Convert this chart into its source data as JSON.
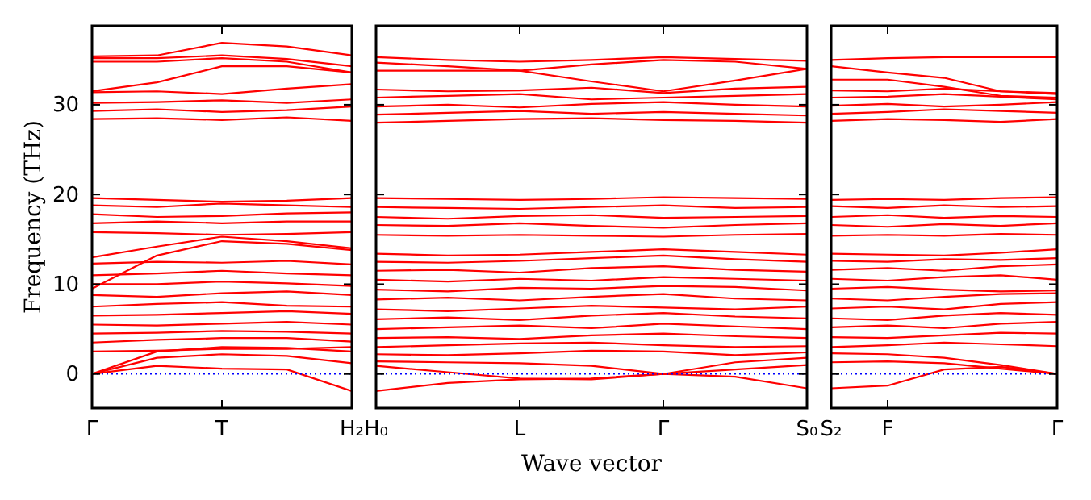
{
  "chart_data": [
    {
      "type": "line",
      "ylabel": "Frequency (THz)",
      "categories": [
        "Γ",
        null,
        "T",
        null,
        "H₂"
      ],
      "ylim": [
        -3.8,
        38.8
      ],
      "yticks": [
        0,
        10,
        20,
        30
      ],
      "ref_lines": [
        {
          "axis": "y",
          "value": 0,
          "color": "#0000ff",
          "line_style": "dotted"
        }
      ],
      "series": [
        {
          "color": "#ff0000",
          "values": [
            0,
            0.9,
            0.6,
            0.5,
            -1.9
          ]
        },
        {
          "color": "#ff0000",
          "values": [
            0,
            1.8,
            2.2,
            2.0,
            1.2
          ]
        },
        {
          "color": "#ff0000",
          "values": [
            0,
            2.5,
            3.0,
            2.9,
            2.5
          ]
        },
        {
          "color": "#ff0000",
          "values": [
            2.5,
            2.6,
            2.8,
            2.8,
            3.0
          ]
        },
        {
          "color": "#ff0000",
          "values": [
            3.5,
            3.8,
            4,
            4,
            3.6
          ]
        },
        {
          "color": "#ff0000",
          "values": [
            4.5,
            4.6,
            4.8,
            4.7,
            4.5
          ]
        },
        {
          "color": "#ff0000",
          "values": [
            5.5,
            5.4,
            5.6,
            5.8,
            5.5
          ]
        },
        {
          "color": "#ff0000",
          "values": [
            6.5,
            6.6,
            6.8,
            7,
            6.7
          ]
        },
        {
          "color": "#ff0000",
          "values": [
            7.5,
            7.8,
            8,
            7.6,
            7.5
          ]
        },
        {
          "color": "#ff0000",
          "values": [
            8.8,
            8.6,
            9,
            9.2,
            8.8
          ]
        },
        {
          "color": "#ff0000",
          "values": [
            10,
            10,
            10.3,
            10.1,
            9.8
          ]
        },
        {
          "color": "#ff0000",
          "values": [
            11,
            11.2,
            11.5,
            11.2,
            11
          ]
        },
        {
          "color": "#ff0000",
          "values": [
            12.3,
            12.5,
            12.4,
            12.6,
            12.2
          ]
        },
        {
          "color": "#ff0000",
          "values": [
            9.5,
            13.2,
            14.8,
            14.5,
            13.8
          ]
        },
        {
          "color": "#ff0000",
          "values": [
            13,
            14.2,
            15.3,
            14.8,
            14
          ]
        },
        {
          "color": "#ff0000",
          "values": [
            15.8,
            15.7,
            15.5,
            15.6,
            15.8
          ]
        },
        {
          "color": "#ff0000",
          "values": [
            16.8,
            17,
            16.8,
            17,
            17
          ]
        },
        {
          "color": "#ff0000",
          "values": [
            17.8,
            17.5,
            17.6,
            17.9,
            18
          ]
        },
        {
          "color": "#ff0000",
          "values": [
            18.8,
            18.6,
            19,
            18.8,
            18.6
          ]
        },
        {
          "color": "#ff0000",
          "values": [
            19.6,
            19.4,
            19.2,
            19.3,
            19.6
          ]
        },
        {
          "color": "#ff0000",
          "values": [
            28.4,
            28.5,
            28.3,
            28.6,
            28.2
          ]
        },
        {
          "color": "#ff0000",
          "values": [
            29.3,
            29.5,
            29.2,
            29.4,
            29.8
          ]
        },
        {
          "color": "#ff0000",
          "values": [
            30.2,
            30.3,
            30.5,
            30.2,
            30.6
          ]
        },
        {
          "color": "#ff0000",
          "values": [
            31.4,
            31.5,
            31.2,
            31.8,
            32.3
          ]
        },
        {
          "color": "#ff0000",
          "values": [
            35.2,
            35.2,
            35.5,
            35.1,
            34.3
          ]
        },
        {
          "color": "#ff0000",
          "values": [
            35.4,
            35.5,
            36.9,
            36.5,
            35.5
          ]
        },
        {
          "color": "#ff0000",
          "values": [
            31.5,
            32.5,
            34.3,
            34.3,
            33.6
          ]
        },
        {
          "color": "#ff0000",
          "values": [
            34.8,
            34.8,
            35.2,
            34.8,
            33.6
          ]
        }
      ]
    },
    {
      "type": "line",
      "xlabel": "Wave vector",
      "categories": [
        "H₀",
        null,
        "L",
        null,
        "Γ",
        null,
        "S₀"
      ],
      "ylim": [
        -3.8,
        38.8
      ],
      "yticks": [
        {
          "value": 0,
          "label": null
        },
        {
          "value": 10,
          "label": null
        },
        {
          "value": 20,
          "label": null
        },
        {
          "value": 30,
          "label": null
        }
      ],
      "tick_labels": "x",
      "ref_lines": [
        {
          "axis": "y",
          "value": 0,
          "color": "#0000ff",
          "line_style": "dotted"
        }
      ],
      "series": [
        {
          "color": "#ff0000",
          "values": [
            -1.9,
            -1.0,
            -0.6,
            -0.5,
            0,
            -0.3,
            -1.6
          ]
        },
        {
          "color": "#ff0000",
          "values": [
            0.9,
            0.2,
            -0.5,
            -0.6,
            0,
            0.5,
            1.0
          ]
        },
        {
          "color": "#ff0000",
          "values": [
            1.4,
            1.3,
            1.2,
            0.9,
            0,
            1.3,
            1.8
          ]
        },
        {
          "color": "#ff0000",
          "values": [
            2.2,
            2.1,
            2.3,
            2.6,
            2.5,
            2.1,
            2.4
          ]
        },
        {
          "color": "#ff0000",
          "values": [
            3.0,
            3.2,
            3.4,
            3.5,
            3.2,
            3.0,
            3.1
          ]
        },
        {
          "color": "#ff0000",
          "values": [
            4.0,
            4.1,
            3.9,
            4.3,
            4.5,
            4.2,
            4.0
          ]
        },
        {
          "color": "#ff0000",
          "values": [
            5.0,
            5.2,
            5.4,
            5.1,
            5.6,
            5.3,
            5.0
          ]
        },
        {
          "color": "#ff0000",
          "values": [
            6.1,
            6.3,
            6.0,
            6.5,
            6.8,
            6.4,
            6.2
          ]
        },
        {
          "color": "#ff0000",
          "values": [
            7.2,
            7.0,
            7.3,
            7.6,
            7.4,
            7.2,
            7.5
          ]
        },
        {
          "color": "#ff0000",
          "values": [
            8.3,
            8.5,
            8.2,
            8.6,
            8.9,
            8.4,
            8.2
          ]
        },
        {
          "color": "#ff0000",
          "values": [
            9.4,
            9.2,
            9.6,
            9.5,
            9.8,
            9.7,
            9.3
          ]
        },
        {
          "color": "#ff0000",
          "values": [
            10.5,
            10.3,
            10.6,
            10.4,
            10.8,
            10.6,
            10.4
          ]
        },
        {
          "color": "#ff0000",
          "values": [
            11.5,
            11.6,
            11.3,
            11.8,
            12.0,
            11.6,
            11.4
          ]
        },
        {
          "color": "#ff0000",
          "values": [
            12.5,
            12.4,
            12.6,
            12.9,
            13.2,
            12.8,
            12.5
          ]
        },
        {
          "color": "#ff0000",
          "values": [
            13.4,
            13.2,
            13.3,
            13.6,
            13.9,
            13.6,
            13.3
          ]
        },
        {
          "color": "#ff0000",
          "values": [
            15.5,
            15.4,
            15.5,
            15.4,
            15.3,
            15.5,
            15.6
          ]
        },
        {
          "color": "#ff0000",
          "values": [
            16.6,
            16.5,
            16.8,
            16.5,
            16.3,
            16.6,
            16.8
          ]
        },
        {
          "color": "#ff0000",
          "values": [
            17.5,
            17.3,
            17.6,
            17.7,
            17.4,
            17.5,
            17.6
          ]
        },
        {
          "color": "#ff0000",
          "values": [
            18.6,
            18.5,
            18.4,
            18.6,
            18.8,
            18.5,
            18.6
          ]
        },
        {
          "color": "#ff0000",
          "values": [
            19.6,
            19.5,
            19.4,
            19.5,
            19.7,
            19.6,
            19.5
          ]
        },
        {
          "color": "#ff0000",
          "values": [
            28.0,
            28.2,
            28.4,
            28.5,
            28.3,
            28.2,
            28.0
          ]
        },
        {
          "color": "#ff0000",
          "values": [
            28.9,
            29.1,
            29.3,
            29.0,
            29.2,
            29.0,
            28.8
          ]
        },
        {
          "color": "#ff0000",
          "values": [
            29.8,
            30.0,
            29.7,
            30.1,
            30.3,
            30.0,
            29.8
          ]
        },
        {
          "color": "#ff0000",
          "values": [
            30.8,
            31.0,
            31.2,
            30.6,
            30.8,
            31.0,
            31.2
          ]
        },
        {
          "color": "#ff0000",
          "values": [
            31.7,
            31.5,
            31.6,
            31.9,
            31.3,
            31.8,
            32.0
          ]
        },
        {
          "color": "#ff0000",
          "values": [
            35.3,
            35.0,
            34.8,
            35.0,
            35.3,
            35.1,
            34.9
          ]
        },
        {
          "color": "#ff0000",
          "values": [
            34.7,
            34.3,
            33.8,
            32.6,
            31.5,
            32.7,
            34.0
          ]
        },
        {
          "color": "#ff0000",
          "values": [
            33.8,
            33.8,
            33.8,
            34.5,
            35.0,
            34.8,
            34.0
          ]
        }
      ]
    },
    {
      "type": "line",
      "categories": [
        "S₂",
        "F",
        null,
        null,
        "Γ"
      ],
      "ylim": [
        -3.8,
        38.8
      ],
      "yticks": [
        {
          "value": 0,
          "label": null
        },
        {
          "value": 10,
          "label": null
        },
        {
          "value": 20,
          "label": null
        },
        {
          "value": 30,
          "label": null
        }
      ],
      "tick_labels": "x",
      "ref_lines": [
        {
          "axis": "y",
          "value": 0,
          "color": "#0000ff",
          "line_style": "dotted"
        }
      ],
      "series": [
        {
          "color": "#ff0000",
          "values": [
            -1.6,
            -1.3,
            0.5,
            0.8,
            0
          ]
        },
        {
          "color": "#ff0000",
          "values": [
            1.3,
            1.4,
            1.2,
            0.6,
            0
          ]
        },
        {
          "color": "#ff0000",
          "values": [
            2.3,
            2.2,
            1.8,
            1.0,
            0
          ]
        },
        {
          "color": "#ff0000",
          "values": [
            3.0,
            3.2,
            3.5,
            3.3,
            3.1
          ]
        },
        {
          "color": "#ff0000",
          "values": [
            4.1,
            4.0,
            4.3,
            4.6,
            4.5
          ]
        },
        {
          "color": "#ff0000",
          "values": [
            5.2,
            5.4,
            5.1,
            5.6,
            5.8
          ]
        },
        {
          "color": "#ff0000",
          "values": [
            6.2,
            6.0,
            6.5,
            6.8,
            6.6
          ]
        },
        {
          "color": "#ff0000",
          "values": [
            7.3,
            7.5,
            7.2,
            7.8,
            8.0
          ]
        },
        {
          "color": "#ff0000",
          "values": [
            8.4,
            8.2,
            8.6,
            8.9,
            9.0
          ]
        },
        {
          "color": "#ff0000",
          "values": [
            9.5,
            9.7,
            9.4,
            9.2,
            9.3
          ]
        },
        {
          "color": "#ff0000",
          "values": [
            10.6,
            10.4,
            10.8,
            11.0,
            10.5
          ]
        },
        {
          "color": "#ff0000",
          "values": [
            11.6,
            11.8,
            11.5,
            12.0,
            12.2
          ]
        },
        {
          "color": "#ff0000",
          "values": [
            12.6,
            12.5,
            12.8,
            12.7,
            12.9
          ]
        },
        {
          "color": "#ff0000",
          "values": [
            13.4,
            13.3,
            13.2,
            13.5,
            13.9
          ]
        },
        {
          "color": "#ff0000",
          "values": [
            15.4,
            15.5,
            15.4,
            15.6,
            15.5
          ]
        },
        {
          "color": "#ff0000",
          "values": [
            16.6,
            16.4,
            16.7,
            16.5,
            16.8
          ]
        },
        {
          "color": "#ff0000",
          "values": [
            17.5,
            17.7,
            17.4,
            17.6,
            17.5
          ]
        },
        {
          "color": "#ff0000",
          "values": [
            18.7,
            18.5,
            18.8,
            18.6,
            18.7
          ]
        },
        {
          "color": "#ff0000",
          "values": [
            19.4,
            19.5,
            19.4,
            19.6,
            19.7
          ]
        },
        {
          "color": "#ff0000",
          "values": [
            28.2,
            28.4,
            28.3,
            28.1,
            28.4
          ]
        },
        {
          "color": "#ff0000",
          "values": [
            29.0,
            29.2,
            29.5,
            29.3,
            29.1
          ]
        },
        {
          "color": "#ff0000",
          "values": [
            29.9,
            30.1,
            29.8,
            30.0,
            30.3
          ]
        },
        {
          "color": "#ff0000",
          "values": [
            30.8,
            30.9,
            31.2,
            30.9,
            30.6
          ]
        },
        {
          "color": "#ff0000",
          "values": [
            31.6,
            31.5,
            31.8,
            31.5,
            31.2
          ]
        },
        {
          "color": "#ff0000",
          "values": [
            35.0,
            35.2,
            35.3,
            35.3,
            35.3
          ]
        },
        {
          "color": "#ff0000",
          "values": [
            34.3,
            33.6,
            33.0,
            31.5,
            31.3
          ]
        },
        {
          "color": "#ff0000",
          "values": [
            32.8,
            32.8,
            32.0,
            31.0,
            30.8
          ]
        }
      ]
    }
  ]
}
